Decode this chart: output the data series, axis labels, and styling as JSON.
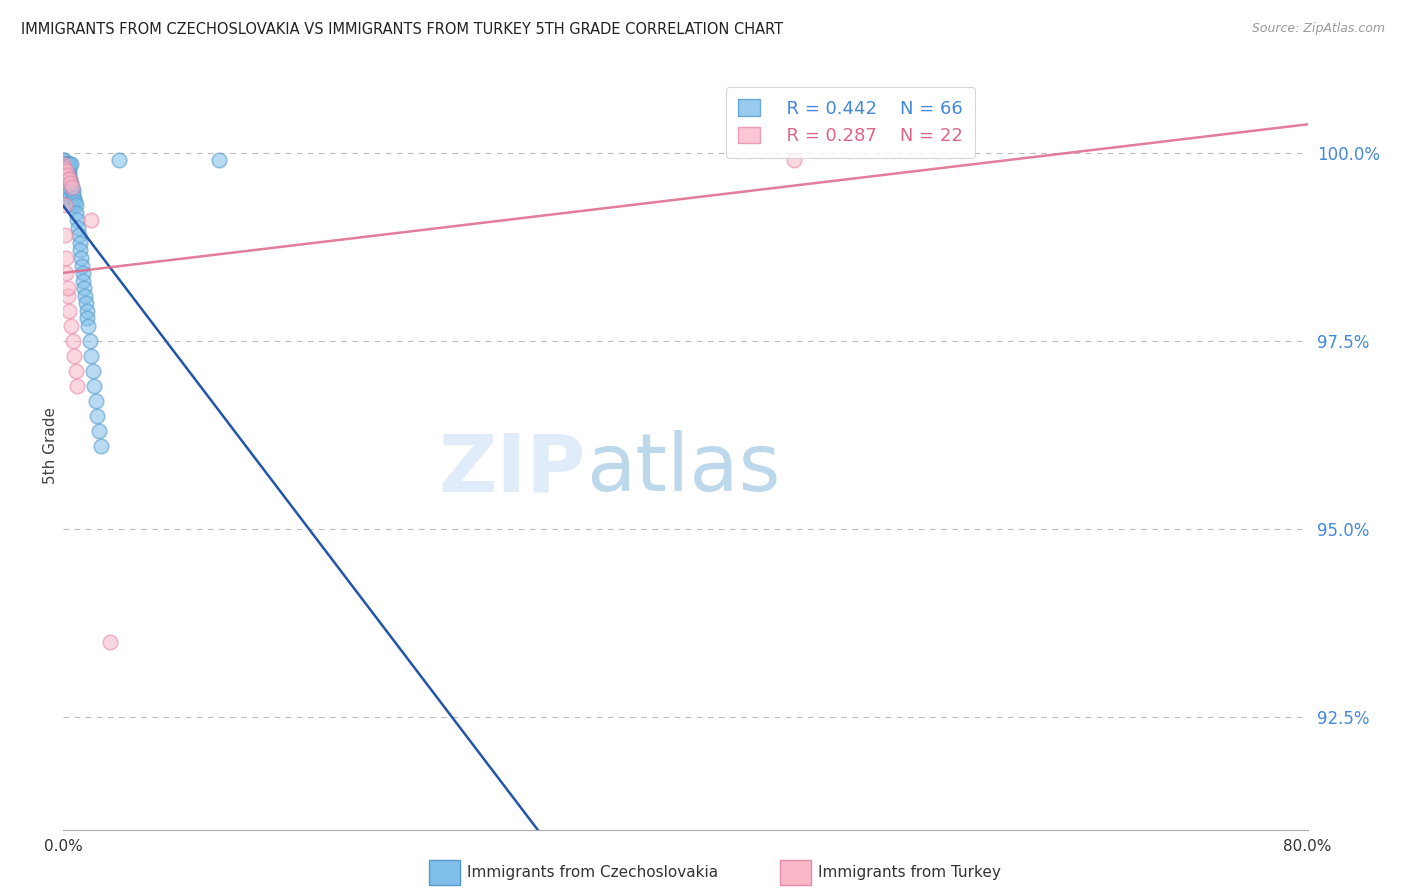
{
  "title": "IMMIGRANTS FROM CZECHOSLOVAKIA VS IMMIGRANTS FROM TURKEY 5TH GRADE CORRELATION CHART",
  "source": "Source: ZipAtlas.com",
  "ylabel": "5th Grade",
  "xmin": 0.0,
  "xmax": 80.0,
  "ymin": 91.0,
  "ymax": 101.2,
  "yticks": [
    92.5,
    95.0,
    97.5,
    100.0
  ],
  "ytick_labels": [
    "92.5%",
    "95.0%",
    "97.5%",
    "100.0%"
  ],
  "blue_color": "#7fbfea",
  "blue_edge_color": "#5599cc",
  "blue_line_color": "#2255aa",
  "pink_color": "#f9b8c8",
  "pink_edge_color": "#e888aa",
  "pink_line_color": "#dd6688",
  "legend_R1": "R = 0.442",
  "legend_N1": "N = 66",
  "legend_R2": "R = 0.287",
  "legend_N2": "N = 22",
  "watermark_zip": "ZIP",
  "watermark_atlas": "atlas",
  "blue_scatter_x": [
    0.0,
    0.0,
    0.0,
    0.05,
    0.05,
    0.05,
    0.08,
    0.08,
    0.1,
    0.1,
    0.12,
    0.12,
    0.15,
    0.15,
    0.18,
    0.18,
    0.2,
    0.2,
    0.22,
    0.25,
    0.25,
    0.28,
    0.3,
    0.3,
    0.35,
    0.38,
    0.4,
    0.4,
    0.42,
    0.45,
    0.48,
    0.5,
    0.5,
    0.55,
    0.58,
    0.6,
    0.65,
    0.7,
    0.75,
    0.8,
    0.85,
    0.9,
    0.95,
    1.0,
    1.05,
    1.1,
    1.15,
    1.2,
    1.25,
    1.3,
    1.35,
    1.4,
    1.45,
    1.5,
    1.55,
    1.6,
    1.7,
    1.8,
    1.9,
    2.0,
    2.1,
    2.2,
    2.3,
    2.4,
    3.6,
    10.0
  ],
  "blue_scatter_y": [
    99.9,
    99.85,
    99.8,
    99.9,
    99.85,
    99.75,
    99.85,
    99.75,
    99.85,
    99.7,
    99.85,
    99.7,
    99.85,
    99.65,
    99.85,
    99.6,
    99.85,
    99.55,
    99.8,
    99.85,
    99.5,
    99.75,
    99.85,
    99.45,
    99.75,
    99.7,
    99.85,
    99.4,
    99.65,
    99.85,
    99.6,
    99.85,
    99.35,
    99.55,
    99.3,
    99.5,
    99.45,
    99.4,
    99.35,
    99.3,
    99.2,
    99.1,
    99.0,
    98.9,
    98.8,
    98.7,
    98.6,
    98.5,
    98.4,
    98.3,
    98.2,
    98.1,
    98.0,
    97.9,
    97.8,
    97.7,
    97.5,
    97.3,
    97.1,
    96.9,
    96.7,
    96.5,
    96.3,
    96.1,
    99.9,
    99.9
  ],
  "pink_scatter_x": [
    0.0,
    0.05,
    0.1,
    0.12,
    0.15,
    0.18,
    0.2,
    0.25,
    0.28,
    0.3,
    0.35,
    0.4,
    0.45,
    0.5,
    0.55,
    0.6,
    0.7,
    0.8,
    0.9,
    1.8,
    3.0,
    47.0
  ],
  "pink_scatter_y": [
    99.85,
    99.8,
    99.3,
    98.9,
    99.75,
    98.6,
    98.4,
    99.7,
    98.1,
    98.2,
    99.65,
    97.9,
    99.6,
    97.7,
    99.55,
    97.5,
    97.3,
    97.1,
    96.9,
    99.1,
    93.5,
    99.9
  ]
}
